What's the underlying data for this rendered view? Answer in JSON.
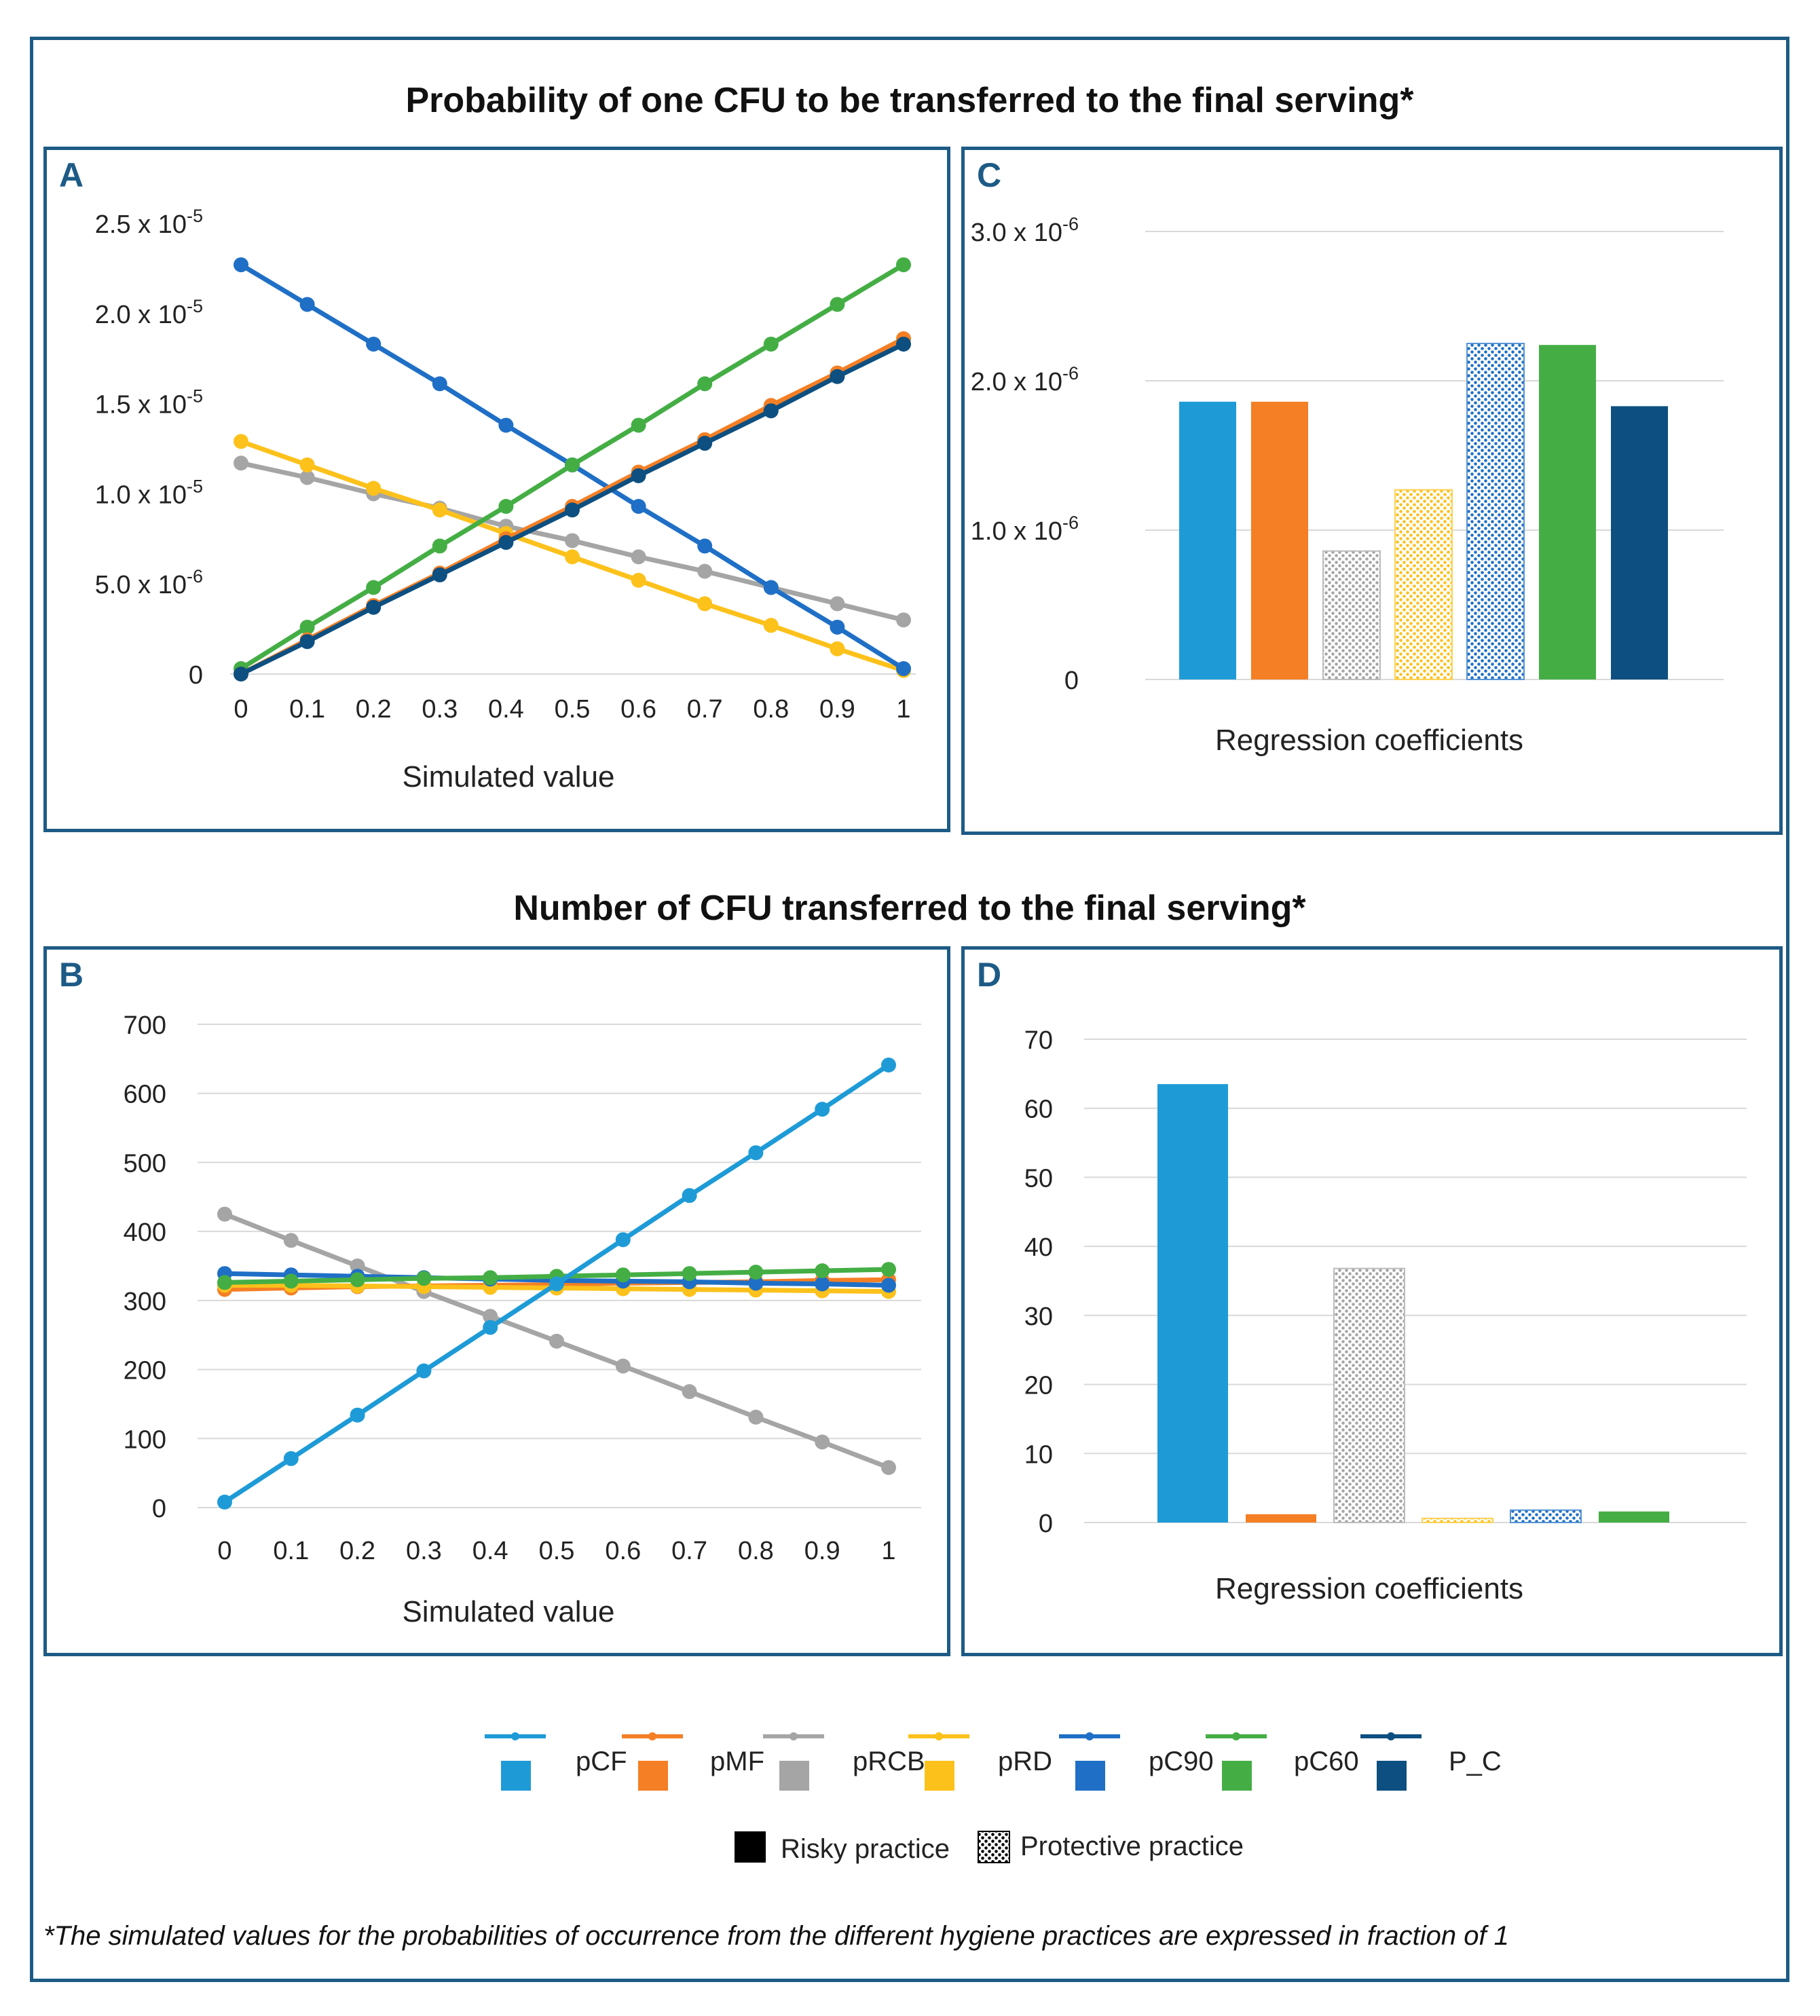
{
  "titles": {
    "top": "Probability of one CFU to be transferred to the final serving*",
    "bottom": "Number of CFU transferred to the final serving*"
  },
  "footnote": "*The simulated values for the probabilities of occurrence from the different hygiene practices are expressed in fraction of 1",
  "colors": {
    "pCF": "#1e9bd7",
    "pMF": "#f47f24",
    "pRCB": "#a5a5a5",
    "pRD": "#fcc11b",
    "pC90": "#1f6fc6",
    "pC60": "#44ae45",
    "P_C": "#0d4f80",
    "frame": "#1d5b86"
  },
  "legend": {
    "series": [
      {
        "key": "pCF",
        "label": "pCF"
      },
      {
        "key": "pMF",
        "label": "pMF"
      },
      {
        "key": "pRCB",
        "label": "pRCB"
      },
      {
        "key": "pRD",
        "label": "pRD"
      },
      {
        "key": "pC90",
        "label": "pC90"
      },
      {
        "key": "pC60",
        "label": "pC60"
      },
      {
        "key": "P_C",
        "label": "P_C"
      }
    ],
    "practice": [
      {
        "label": "Risky practice",
        "pattern": "solid"
      },
      {
        "label": "Protective practice",
        "pattern": "dotted"
      }
    ]
  },
  "chart_data": [
    {
      "panel": "A",
      "type": "line",
      "x": [
        0,
        0.1,
        0.2,
        0.3,
        0.4,
        0.5,
        0.6,
        0.7,
        0.8,
        0.9,
        1
      ],
      "xticklabels": [
        "0",
        "0.1",
        "0.2",
        "0.3",
        "0.4",
        "0.5",
        "0.6",
        "0.7",
        "0.8",
        "0.9",
        "1"
      ],
      "xlabel": "Simulated value",
      "ylabel": "",
      "ylim": [
        0,
        2.5e-05
      ],
      "yticks": [
        {
          "value": 0,
          "label": "0",
          "exp": ""
        },
        {
          "value": 5e-06,
          "label": "5.0 x 10",
          "exp": "-6"
        },
        {
          "value": 1e-05,
          "label": "1.0 x 10",
          "exp": "-5"
        },
        {
          "value": 1.5e-05,
          "label": "1.5 x 10",
          "exp": "-5"
        },
        {
          "value": 2e-05,
          "label": "2.0 x 10",
          "exp": "-5"
        },
        {
          "value": 2.5e-05,
          "label": "2.5 x 10",
          "exp": "-5"
        }
      ],
      "series": [
        {
          "name": "pRCB",
          "values": [
            1.17e-05,
            1.09e-05,
            1e-05,
            9.2e-06,
            8.2e-06,
            7.4e-06,
            6.5e-06,
            5.7e-06,
            4.8e-06,
            3.9e-06,
            3e-06
          ]
        },
        {
          "name": "pRD",
          "values": [
            1.29e-05,
            1.16e-05,
            1.03e-05,
            9.1e-06,
            7.8e-06,
            6.5e-06,
            5.2e-06,
            3.9e-06,
            2.7e-06,
            1.4e-06,
            2e-07
          ]
        },
        {
          "name": "pC90",
          "values": [
            2.27e-05,
            2.05e-05,
            1.83e-05,
            1.61e-05,
            1.38e-05,
            1.16e-05,
            9.3e-06,
            7.1e-06,
            4.8e-06,
            2.6e-06,
            3e-07
          ]
        },
        {
          "name": "pC60",
          "values": [
            3e-07,
            2.6e-06,
            4.8e-06,
            7.1e-06,
            9.3e-06,
            1.16e-05,
            1.38e-05,
            1.61e-05,
            1.83e-05,
            2.05e-05,
            2.27e-05
          ]
        },
        {
          "name": "pMF",
          "values": [
            0.0,
            1.9e-06,
            3.8e-06,
            5.6e-06,
            7.5e-06,
            9.3e-06,
            1.12e-05,
            1.3e-05,
            1.49e-05,
            1.67e-05,
            1.86e-05
          ]
        },
        {
          "name": "P_C",
          "values": [
            0.0,
            1.8e-06,
            3.7e-06,
            5.5e-06,
            7.3e-06,
            9.1e-06,
            1.1e-05,
            1.28e-05,
            1.46e-05,
            1.65e-05,
            1.83e-05
          ]
        }
      ]
    },
    {
      "panel": "C",
      "type": "bar",
      "xlabel": "Regression coefficients",
      "ylim": [
        0,
        3e-06
      ],
      "yticks": [
        {
          "value": 0,
          "label": "0",
          "exp": ""
        },
        {
          "value": 1e-06,
          "label": "1.0 x 10",
          "exp": "-6"
        },
        {
          "value": 2e-06,
          "label": "2.0 x 10",
          "exp": "-6"
        },
        {
          "value": 3e-06,
          "label": "3.0 x 10",
          "exp": "-6"
        }
      ],
      "bars": [
        {
          "name": "pCF",
          "value": 1.86e-06,
          "pattern": "solid"
        },
        {
          "name": "pMF",
          "value": 1.86e-06,
          "pattern": "solid"
        },
        {
          "name": "pRCB",
          "value": 8.6e-07,
          "pattern": "dotted"
        },
        {
          "name": "pRD",
          "value": 1.27e-06,
          "pattern": "dotted"
        },
        {
          "name": "pC90",
          "value": 2.25e-06,
          "pattern": "dotted"
        },
        {
          "name": "pC60",
          "value": 2.24e-06,
          "pattern": "solid"
        },
        {
          "name": "P_C",
          "value": 1.83e-06,
          "pattern": "solid"
        }
      ]
    },
    {
      "panel": "B",
      "type": "line",
      "x": [
        0,
        0.1,
        0.2,
        0.3,
        0.4,
        0.5,
        0.6,
        0.7,
        0.8,
        0.9,
        1
      ],
      "xticklabels": [
        "0",
        "0.1",
        "0.2",
        "0.3",
        "0.4",
        "0.5",
        "0.6",
        "0.7",
        "0.8",
        "0.9",
        "1"
      ],
      "xlabel": "Simulated value",
      "ylim": [
        0,
        700
      ],
      "yticks": [
        {
          "value": 0,
          "label": "0",
          "exp": ""
        },
        {
          "value": 100,
          "label": "100",
          "exp": ""
        },
        {
          "value": 200,
          "label": "200",
          "exp": ""
        },
        {
          "value": 300,
          "label": "300",
          "exp": ""
        },
        {
          "value": 400,
          "label": "400",
          "exp": ""
        },
        {
          "value": 500,
          "label": "500",
          "exp": ""
        },
        {
          "value": 600,
          "label": "600",
          "exp": ""
        },
        {
          "value": 700,
          "label": "700",
          "exp": ""
        }
      ],
      "series": [
        {
          "name": "pRCB",
          "values": [
            425,
            387,
            350,
            313,
            277,
            241,
            205,
            168,
            131,
            95,
            58
          ]
        },
        {
          "name": "pMF",
          "values": [
            316,
            318,
            320,
            321,
            322,
            323,
            325,
            326,
            327,
            329,
            330
          ]
        },
        {
          "name": "pRD",
          "values": [
            322,
            322,
            321,
            320,
            319,
            318,
            317,
            316,
            315,
            314,
            313
          ]
        },
        {
          "name": "pC90",
          "values": [
            339,
            337,
            335,
            333,
            331,
            329,
            328,
            327,
            325,
            324,
            322
          ]
        },
        {
          "name": "pC60",
          "values": [
            326,
            328,
            330,
            332,
            333,
            335,
            337,
            339,
            341,
            343,
            345
          ]
        },
        {
          "name": "pCF",
          "values": [
            8,
            71,
            134,
            198,
            261,
            324,
            388,
            452,
            514,
            577,
            641
          ]
        }
      ]
    },
    {
      "panel": "D",
      "type": "bar",
      "xlabel": "Regression coefficients",
      "ylim": [
        0,
        70
      ],
      "yticks": [
        {
          "value": 0,
          "label": "0",
          "exp": ""
        },
        {
          "value": 10,
          "label": "10",
          "exp": ""
        },
        {
          "value": 20,
          "label": "20",
          "exp": ""
        },
        {
          "value": 30,
          "label": "30",
          "exp": ""
        },
        {
          "value": 40,
          "label": "40",
          "exp": ""
        },
        {
          "value": 50,
          "label": "50",
          "exp": ""
        },
        {
          "value": 60,
          "label": "60",
          "exp": ""
        },
        {
          "value": 70,
          "label": "70",
          "exp": ""
        }
      ],
      "bars": [
        {
          "name": "pCF",
          "value": 63.5,
          "pattern": "solid"
        },
        {
          "name": "pMF",
          "value": 1.2,
          "pattern": "solid"
        },
        {
          "name": "pRCB",
          "value": 36.8,
          "pattern": "dotted"
        },
        {
          "name": "pRD",
          "value": 0.6,
          "pattern": "dotted"
        },
        {
          "name": "pC90",
          "value": 1.8,
          "pattern": "dotted"
        },
        {
          "name": "pC60",
          "value": 1.6,
          "pattern": "solid"
        }
      ]
    }
  ]
}
